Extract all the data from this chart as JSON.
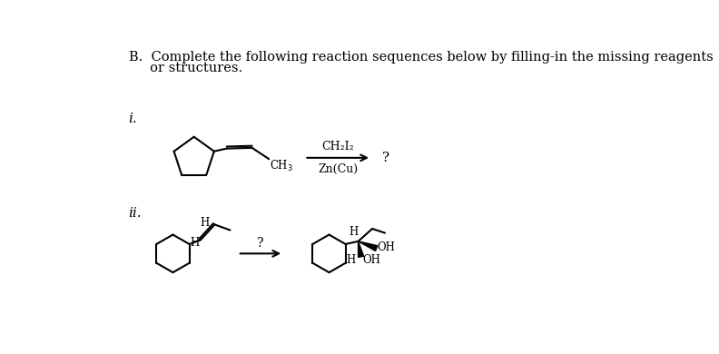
{
  "title_line1": "B.  Complete the following reaction sequences below by filling-in the missing reagents",
  "title_line2": "     or structures.",
  "label_i": "i.",
  "label_ii": "ii.",
  "reagent_i_top": "CH₂I₂",
  "reagent_i_bot": "Zn(Cu)",
  "product_i": "?",
  "reagent_ii": "?",
  "background": "#ffffff",
  "text_color": "#000000",
  "font_size_title": 10.5,
  "font_size_label": 11,
  "font_size_chem": 9
}
